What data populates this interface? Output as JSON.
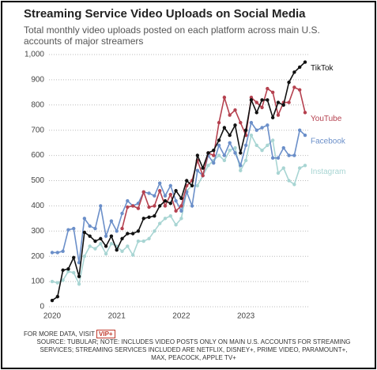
{
  "chart_data": {
    "type": "line",
    "title": "Streaming Service Video Uploads on Social Media",
    "subtitle": "Total monthly video uploads posted on each platform across main U.S. accounts of major streamers",
    "categories": [
      "2020",
      null,
      null,
      null,
      null,
      null,
      null,
      null,
      null,
      null,
      null,
      null,
      "2021",
      null,
      null,
      null,
      null,
      null,
      null,
      null,
      null,
      null,
      null,
      null,
      "2022",
      null,
      null,
      null,
      null,
      null,
      null,
      null,
      null,
      null,
      null,
      null,
      "2023",
      null,
      null,
      null,
      null,
      null,
      null,
      null,
      null,
      null,
      null,
      null
    ],
    "series": [
      {
        "name": "Instagram",
        "color": "#a8d5d3",
        "values": [
          100,
          95,
          105,
          140,
          135,
          90,
          200,
          240,
          230,
          250,
          210,
          250,
          240,
          220,
          240,
          205,
          260,
          260,
          270,
          300,
          330,
          350,
          360,
          325,
          350,
          460,
          480,
          480,
          520,
          560,
          580,
          600,
          580,
          620,
          630,
          540,
          580,
          680,
          640,
          620,
          640,
          660,
          530,
          550,
          500,
          485,
          550,
          560
        ]
      },
      {
        "name": "Facebook",
        "color": "#6b8fc9",
        "values": [
          215,
          215,
          220,
          305,
          310,
          175,
          350,
          320,
          310,
          400,
          280,
          340,
          300,
          370,
          420,
          400,
          410,
          455,
          450,
          440,
          490,
          440,
          480,
          420,
          380,
          455,
          400,
          540,
          520,
          600,
          570,
          640,
          600,
          650,
          610,
          560,
          640,
          730,
          700,
          710,
          720,
          590,
          590,
          630,
          600,
          600,
          700,
          680
        ]
      },
      {
        "name": "YouTube",
        "color": "#b5414f",
        "values": [
          null,
          null,
          null,
          null,
          null,
          null,
          null,
          null,
          null,
          null,
          null,
          null,
          null,
          310,
          395,
          400,
          390,
          455,
          395,
          400,
          460,
          400,
          445,
          380,
          400,
          480,
          500,
          580,
          520,
          610,
          600,
          730,
          830,
          760,
          780,
          730,
          680,
          830,
          810,
          790,
          865,
          850,
          760,
          810,
          810,
          870,
          860,
          770
        ]
      },
      {
        "name": "TikTok",
        "color": "#111111",
        "values": [
          25,
          40,
          145,
          150,
          195,
          120,
          295,
          280,
          260,
          270,
          240,
          280,
          225,
          270,
          290,
          290,
          300,
          350,
          355,
          360,
          400,
          420,
          410,
          460,
          430,
          500,
          480,
          600,
          550,
          610,
          620,
          660,
          710,
          680,
          720,
          610,
          700,
          820,
          770,
          820,
          820,
          750,
          810,
          800,
          890,
          930,
          950,
          970
        ]
      }
    ],
    "ylim": [
      0,
      1000
    ],
    "yticks": [
      0,
      100,
      200,
      300,
      400,
      500,
      600,
      700,
      800,
      900,
      {
        "value": 1000,
        "label": "1,000"
      }
    ],
    "grid": true,
    "footer": {
      "more": "FOR MORE DATA, VISIT",
      "logo": "VIP+",
      "source": "SOURCE: TUBULAR; NOTE: INCLUDES VIDEO POSTS ONLY ON MAIN U.S. ACCOUNTS FOR STREAMING SERVICES; STREAMING SERVICES INCLUDED ARE NETFLIX, DISNEY+, PRIME VIDEO, PARAMOUNT+, MAX, PEACOCK, APPLE TV+"
    }
  }
}
